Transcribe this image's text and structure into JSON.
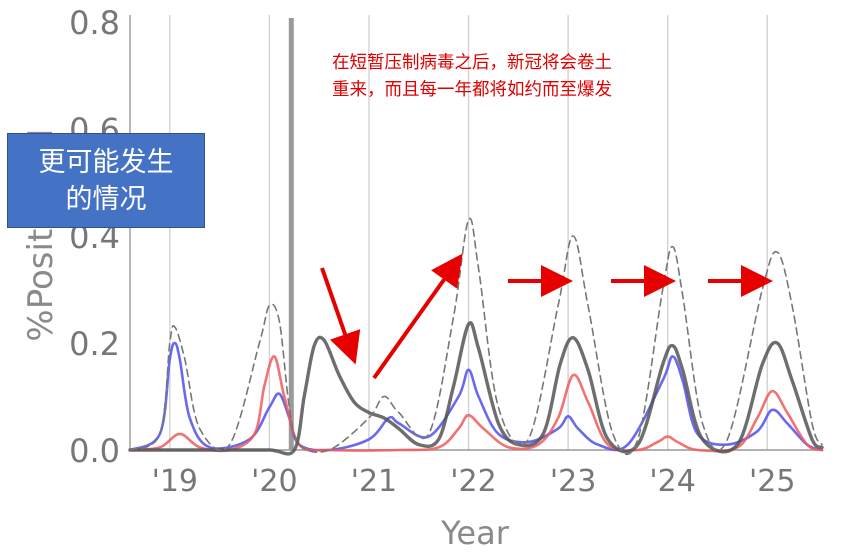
{
  "chart_data": {
    "type": "line",
    "xlabel": "Year",
    "ylabel": "%Positive ILI",
    "ylim": [
      0,
      0.8
    ],
    "xlim": [
      2018.6,
      2025.55
    ],
    "y_ticks": [
      {
        "value": 0.0,
        "label": "0.0"
      },
      {
        "value": 0.2,
        "label": "0.2"
      },
      {
        "value": 0.4,
        "label": "0.4"
      },
      {
        "value": 0.6,
        "label": "0.6"
      },
      {
        "value": 0.8,
        "label": "0.8"
      }
    ],
    "x_ticks": [
      {
        "value": 2019.05,
        "label": "'19"
      },
      {
        "value": 2020.05,
        "label": "'20"
      },
      {
        "value": 2021.05,
        "label": "'21"
      },
      {
        "value": 2022.05,
        "label": "'22"
      },
      {
        "value": 2023.05,
        "label": "'23"
      },
      {
        "value": 2024.05,
        "label": "'24"
      },
      {
        "value": 2025.05,
        "label": "'25"
      }
    ],
    "vertical_gridlines": [
      2019.0,
      2020.0,
      2021.0,
      2022.0,
      2023.0,
      2024.0,
      2025.0
    ],
    "intervention_line_x": 2020.22,
    "series": [
      {
        "color": "#5050ee",
        "style": "solid",
        "x": [
          2018.6,
          2018.9,
          2019.0,
          2019.05,
          2019.1,
          2019.2,
          2019.4,
          2019.8,
          2020.0,
          2020.1,
          2020.2,
          2020.3,
          2020.6,
          2021.0,
          2021.2,
          2021.3,
          2021.6,
          2021.9,
          2022.0,
          2022.1,
          2022.3,
          2022.6,
          2022.9,
          2023.0,
          2023.1,
          2023.3,
          2023.6,
          2023.95,
          2024.05,
          2024.15,
          2024.3,
          2024.6,
          2024.9,
          2025.05,
          2025.2,
          2025.4,
          2025.55
        ],
        "y": [
          0.0,
          0.03,
          0.17,
          0.2,
          0.17,
          0.06,
          0.005,
          0.02,
          0.08,
          0.105,
          0.06,
          0.01,
          0.0,
          0.02,
          0.06,
          0.05,
          0.025,
          0.1,
          0.15,
          0.1,
          0.03,
          0.015,
          0.04,
          0.063,
          0.04,
          0.01,
          0.01,
          0.13,
          0.175,
          0.13,
          0.03,
          0.01,
          0.035,
          0.075,
          0.05,
          0.01,
          0.0
        ]
      },
      {
        "color": "#ee5a5a",
        "style": "solid",
        "x": [
          2018.6,
          2018.9,
          2019.1,
          2019.3,
          2019.6,
          2019.85,
          2019.95,
          2020.05,
          2020.15,
          2020.3,
          2020.6,
          2021.3,
          2021.7,
          2021.9,
          2022.0,
          2022.15,
          2022.4,
          2022.7,
          2022.9,
          2023.05,
          2023.2,
          2023.4,
          2023.7,
          2023.9,
          2024.0,
          2024.1,
          2024.3,
          2024.7,
          2024.9,
          2025.05,
          2025.2,
          2025.4,
          2025.55
        ],
        "y": [
          0.0,
          0.005,
          0.03,
          0.005,
          0.0,
          0.03,
          0.12,
          0.175,
          0.1,
          0.01,
          0.0,
          0.0,
          0.005,
          0.04,
          0.065,
          0.04,
          0.005,
          0.01,
          0.06,
          0.14,
          0.09,
          0.01,
          0.0,
          0.015,
          0.025,
          0.015,
          0.0,
          0.005,
          0.06,
          0.11,
          0.07,
          0.01,
          0.0
        ]
      },
      {
        "color": "#555555",
        "style": "solid",
        "width": 3.4,
        "x": [
          2018.6,
          2019.0,
          2019.5,
          2020.0,
          2020.25,
          2020.35,
          2020.45,
          2020.55,
          2020.7,
          2020.85,
          2021.0,
          2021.15,
          2021.3,
          2021.5,
          2021.7,
          2021.85,
          2022.0,
          2022.1,
          2022.3,
          2022.5,
          2022.75,
          2022.92,
          2023.05,
          2023.2,
          2023.4,
          2023.7,
          2023.95,
          2024.05,
          2024.15,
          2024.35,
          2024.7,
          2024.95,
          2025.1,
          2025.25,
          2025.45,
          2025.55
        ],
        "y": [
          0.0,
          0.0,
          0.0,
          0.0,
          0.0,
          0.1,
          0.195,
          0.205,
          0.14,
          0.09,
          0.07,
          0.06,
          0.04,
          0.01,
          0.02,
          0.12,
          0.235,
          0.19,
          0.05,
          0.01,
          0.03,
          0.16,
          0.21,
          0.15,
          0.02,
          0.01,
          0.16,
          0.195,
          0.15,
          0.02,
          0.01,
          0.16,
          0.2,
          0.13,
          0.02,
          0.005
        ]
      },
      {
        "color": "#777777",
        "style": "dashed",
        "x": [
          2018.6,
          2018.9,
          2019.0,
          2019.05,
          2019.15,
          2019.3,
          2019.6,
          2019.9,
          2020.0,
          2020.1,
          2020.2,
          2020.3,
          2020.6,
          2021.0,
          2021.15,
          2021.3,
          2021.6,
          2021.85,
          2022.0,
          2022.1,
          2022.3,
          2022.6,
          2022.9,
          2023.05,
          2023.2,
          2023.45,
          2023.7,
          2023.95,
          2024.05,
          2024.15,
          2024.35,
          2024.6,
          2024.95,
          2025.1,
          2025.25,
          2025.45,
          2025.55
        ],
        "y": [
          0.0,
          0.03,
          0.2,
          0.23,
          0.17,
          0.04,
          0.01,
          0.2,
          0.27,
          0.24,
          0.08,
          0.01,
          0.0,
          0.06,
          0.1,
          0.07,
          0.03,
          0.25,
          0.43,
          0.34,
          0.08,
          0.02,
          0.27,
          0.4,
          0.27,
          0.03,
          0.02,
          0.3,
          0.38,
          0.29,
          0.05,
          0.02,
          0.3,
          0.37,
          0.27,
          0.05,
          0.01
        ]
      }
    ],
    "annotations": [
      {
        "id": "box",
        "text_lines": [
          "更可能发生",
          "的情况"
        ]
      },
      {
        "id": "note",
        "text_lines": [
          "在短暂压制病毒之后，新冠将会卷土",
          "重来，而且每一年都将如约而至爆发"
        ],
        "color": "#e00000"
      }
    ]
  }
}
